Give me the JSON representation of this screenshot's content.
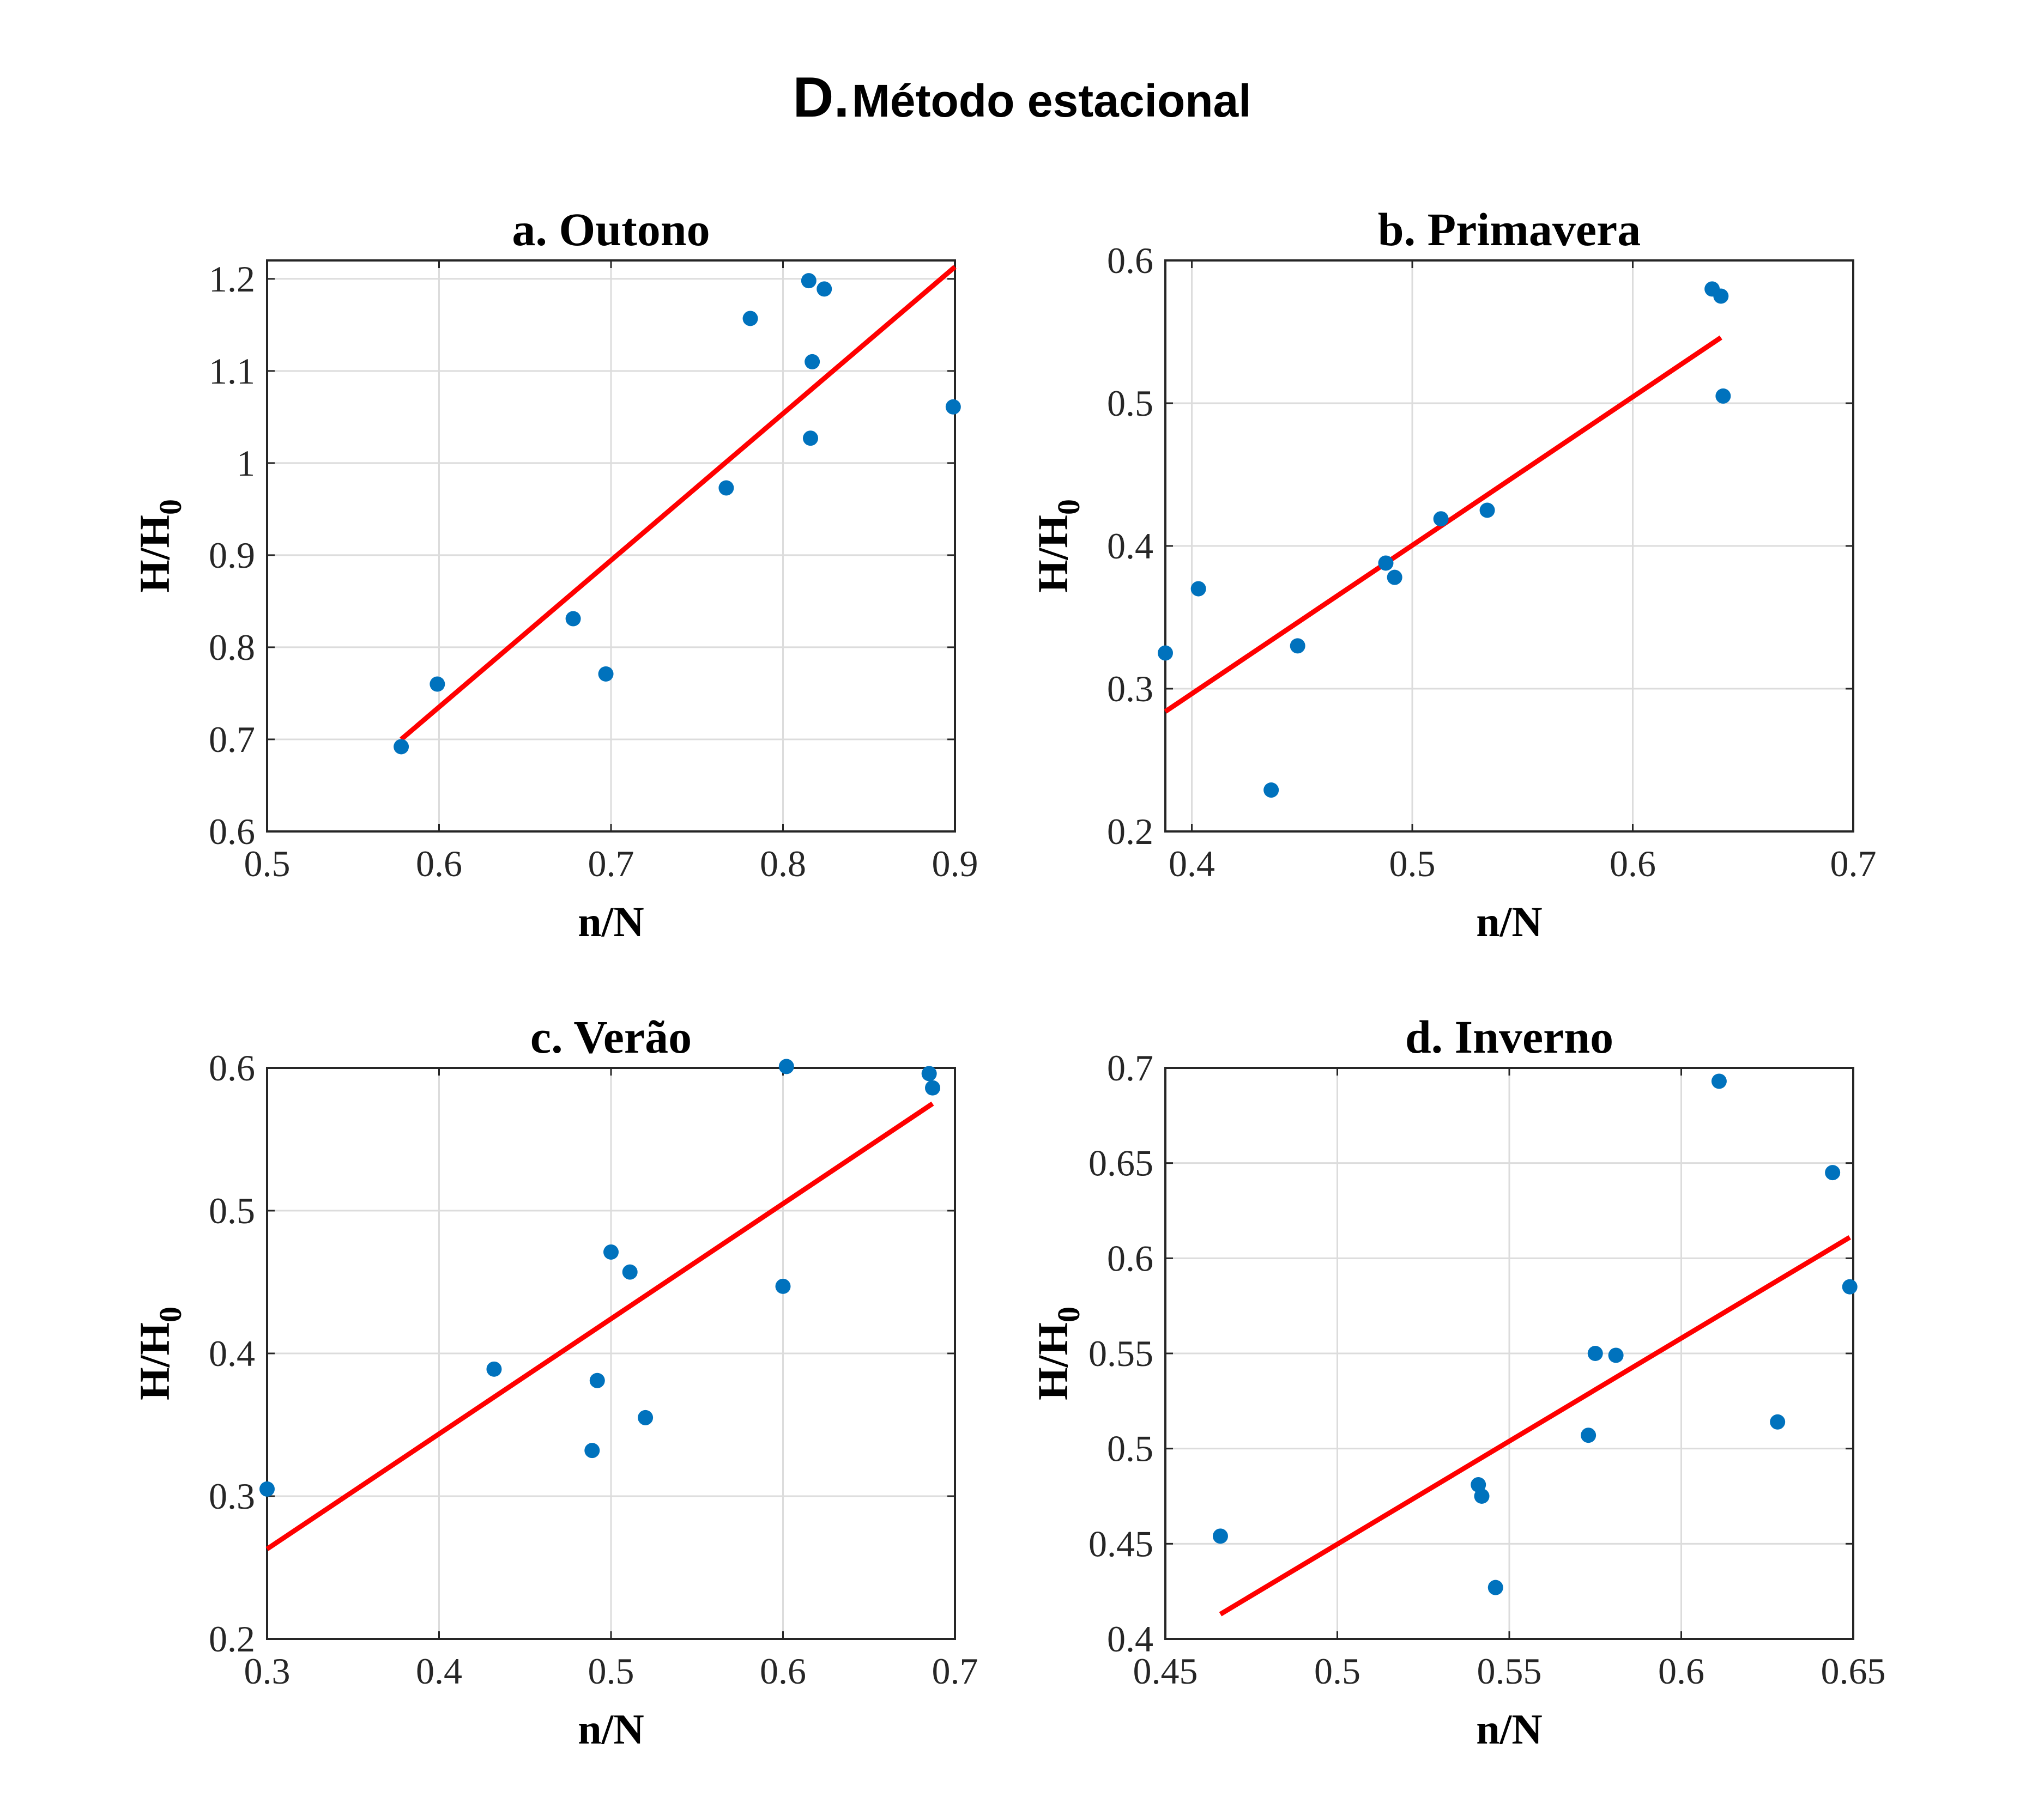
{
  "figure": {
    "title_letter": "D.",
    "title_text": "Método estacional"
  },
  "colors": {
    "points": "#0072BD",
    "fit_line": "#FF0000",
    "grid": "#DCDCDC",
    "axes": "#262626"
  },
  "chart_data": [
    {
      "type": "scatter",
      "title": "a. Outono",
      "xlabel": "n/N",
      "ylabel": "H/H",
      "ylabel_sub": "0",
      "xlim": [
        0.5,
        0.9
      ],
      "ylim": [
        0.6,
        1.22
      ],
      "xticks": [
        0.5,
        0.6,
        0.7,
        0.8,
        0.9
      ],
      "xtick_labels": [
        "0.5",
        "0.6",
        "0.7",
        "0.8",
        "0.9"
      ],
      "yticks": [
        0.6,
        0.7,
        0.8,
        0.9,
        1.0,
        1.1,
        1.2
      ],
      "ytick_labels": [
        "0.6",
        "0.7",
        "0.8",
        "0.9",
        "1",
        "1.1",
        "1.2"
      ],
      "grid": true,
      "points": [
        [
          0.578,
          0.692
        ],
        [
          0.599,
          0.76
        ],
        [
          0.678,
          0.831
        ],
        [
          0.697,
          0.771
        ],
        [
          0.767,
          0.973
        ],
        [
          0.781,
          1.157
        ],
        [
          0.815,
          1.198
        ],
        [
          0.824,
          1.189
        ],
        [
          0.817,
          1.11
        ],
        [
          0.816,
          1.027
        ],
        [
          0.899,
          1.061
        ]
      ],
      "fit_line": [
        [
          0.578,
          0.7
        ],
        [
          0.9,
          1.213
        ]
      ]
    },
    {
      "type": "scatter",
      "title": "b. Primavera",
      "xlabel": "n/N",
      "ylabel": "H/H",
      "ylabel_sub": "0",
      "xlim": [
        0.388,
        0.7
      ],
      "ylim": [
        0.2,
        0.6
      ],
      "xticks": [
        0.4,
        0.5,
        0.6,
        0.7
      ],
      "xtick_labels": [
        "0.4",
        "0.5",
        "0.6",
        "0.7"
      ],
      "yticks": [
        0.2,
        0.3,
        0.4,
        0.5,
        0.6
      ],
      "ytick_labels": [
        "0.2",
        "0.3",
        "0.4",
        "0.5",
        "0.6"
      ],
      "grid": true,
      "points": [
        [
          0.388,
          0.325
        ],
        [
          0.403,
          0.37
        ],
        [
          0.436,
          0.229
        ],
        [
          0.448,
          0.33
        ],
        [
          0.488,
          0.388
        ],
        [
          0.492,
          0.378
        ],
        [
          0.513,
          0.419
        ],
        [
          0.534,
          0.425
        ],
        [
          0.636,
          0.58
        ],
        [
          0.64,
          0.575
        ],
        [
          0.641,
          0.505
        ]
      ],
      "fit_line": [
        [
          0.388,
          0.284
        ],
        [
          0.64,
          0.546
        ]
      ]
    },
    {
      "type": "scatter",
      "title": "c. Verão",
      "xlabel": "n/N",
      "ylabel": "H/H",
      "ylabel_sub": "0",
      "xlim": [
        0.3,
        0.7
      ],
      "ylim": [
        0.2,
        0.6
      ],
      "xticks": [
        0.3,
        0.4,
        0.5,
        0.6,
        0.7
      ],
      "xtick_labels": [
        "0.3",
        "0.4",
        "0.5",
        "0.6",
        "0.7"
      ],
      "yticks": [
        0.2,
        0.3,
        0.4,
        0.5,
        0.6
      ],
      "ytick_labels": [
        "0.2",
        "0.3",
        "0.4",
        "0.5",
        "0.6"
      ],
      "grid": true,
      "points": [
        [
          0.3,
          0.305
        ],
        [
          0.432,
          0.389
        ],
        [
          0.489,
          0.332
        ],
        [
          0.492,
          0.381
        ],
        [
          0.5,
          0.471
        ],
        [
          0.511,
          0.457
        ],
        [
          0.52,
          0.355
        ],
        [
          0.6,
          0.447
        ],
        [
          0.602,
          0.601
        ],
        [
          0.685,
          0.596
        ],
        [
          0.687,
          0.586
        ]
      ],
      "fit_line": [
        [
          0.3,
          0.263
        ],
        [
          0.687,
          0.575
        ]
      ]
    },
    {
      "type": "scatter",
      "title": "d. Inverno",
      "xlabel": "n/N",
      "ylabel": "H/H",
      "ylabel_sub": "0",
      "xlim": [
        0.45,
        0.65
      ],
      "ylim": [
        0.4,
        0.7
      ],
      "xticks": [
        0.45,
        0.5,
        0.55,
        0.6,
        0.65
      ],
      "xtick_labels": [
        "0.45",
        "0.5",
        "0.55",
        "0.6",
        "0.65"
      ],
      "yticks": [
        0.4,
        0.45,
        0.5,
        0.55,
        0.6,
        0.65,
        0.7
      ],
      "ytick_labels": [
        "0.4",
        "0.45",
        "0.5",
        "0.55",
        "0.6",
        "0.65",
        "0.7"
      ],
      "grid": true,
      "points": [
        [
          0.466,
          0.454
        ],
        [
          0.541,
          0.481
        ],
        [
          0.542,
          0.475
        ],
        [
          0.546,
          0.427
        ],
        [
          0.573,
          0.507
        ],
        [
          0.575,
          0.55
        ],
        [
          0.581,
          0.549
        ],
        [
          0.611,
          0.693
        ],
        [
          0.628,
          0.514
        ],
        [
          0.644,
          0.645
        ],
        [
          0.649,
          0.585
        ]
      ],
      "fit_line": [
        [
          0.466,
          0.413
        ],
        [
          0.649,
          0.611
        ]
      ]
    }
  ]
}
